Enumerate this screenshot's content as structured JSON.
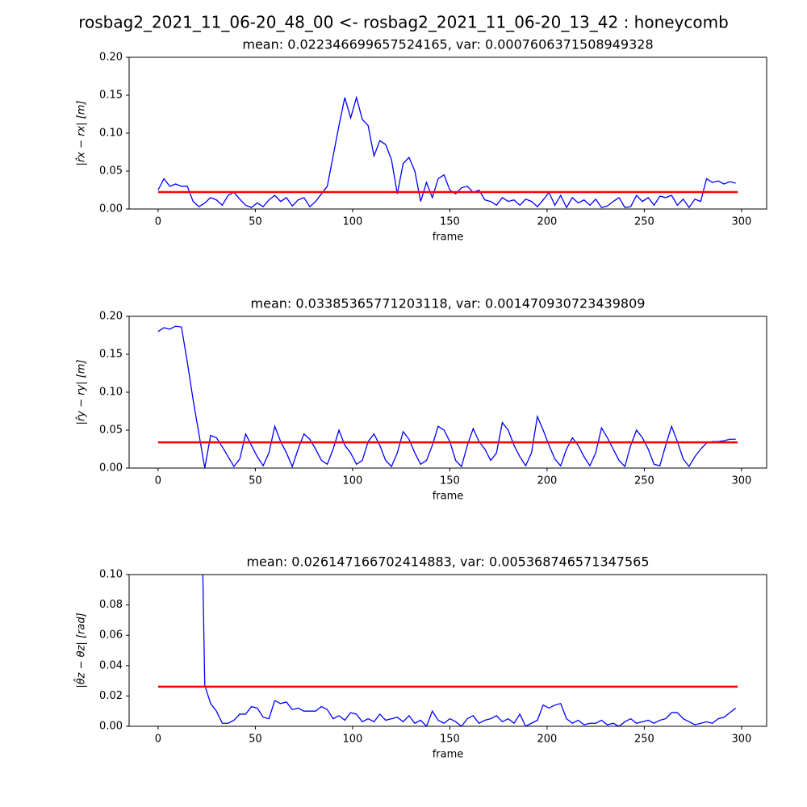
{
  "suptitle": "rosbag2_2021_11_06-20_48_00 <- rosbag2_2021_11_06-20_13_42 : honeycomb",
  "chart_data": [
    {
      "type": "line",
      "title": "mean: 0.022346699657524165, var: 0.0007606371508949328",
      "xlabel": "frame",
      "ylabel": "|r̂x − rx| [m]",
      "xlim": [
        -14.9,
        312.9
      ],
      "xticks": [
        0,
        50,
        100,
        150,
        200,
        250,
        300
      ],
      "ylim": [
        0,
        0.2
      ],
      "yticks": [
        {
          "value": 0,
          "label": "0.00"
        },
        {
          "value": 0.05,
          "label": "0.05"
        },
        {
          "value": 0.1,
          "label": "0.10"
        },
        {
          "value": 0.15,
          "label": "0.15"
        },
        {
          "value": 0.2,
          "label": "0.20"
        }
      ],
      "color": "#0000ff",
      "x": [
        0,
        3,
        6,
        9,
        12,
        15,
        18,
        21,
        24,
        27,
        30,
        33,
        36,
        39,
        42,
        45,
        48,
        51,
        54,
        57,
        60,
        63,
        66,
        69,
        72,
        75,
        78,
        81,
        84,
        87,
        90,
        93,
        96,
        99,
        102,
        105,
        108,
        111,
        114,
        117,
        120,
        123,
        126,
        129,
        132,
        135,
        138,
        141,
        144,
        147,
        150,
        153,
        156,
        159,
        162,
        165,
        168,
        171,
        174,
        177,
        180,
        183,
        186,
        189,
        192,
        195,
        198,
        201,
        204,
        207,
        210,
        213,
        216,
        219,
        222,
        225,
        228,
        231,
        234,
        237,
        240,
        243,
        246,
        249,
        252,
        255,
        258,
        261,
        264,
        267,
        270,
        273,
        276,
        279,
        282,
        285,
        288,
        291,
        294,
        297
      ],
      "values": [
        0.025,
        0.04,
        0.03,
        0.033,
        0.03,
        0.03,
        0.01,
        0.003,
        0.008,
        0.015,
        0.012,
        0.005,
        0.018,
        0.022,
        0.013,
        0.005,
        0.002,
        0.008,
        0.003,
        0.012,
        0.018,
        0.01,
        0.015,
        0.004,
        0.012,
        0.015,
        0.003,
        0.01,
        0.02,
        0.03,
        0.07,
        0.11,
        0.147,
        0.12,
        0.147,
        0.118,
        0.11,
        0.07,
        0.09,
        0.085,
        0.065,
        0.02,
        0.06,
        0.068,
        0.05,
        0.01,
        0.035,
        0.015,
        0.04,
        0.045,
        0.025,
        0.02,
        0.028,
        0.03,
        0.022,
        0.025,
        0.012,
        0.01,
        0.005,
        0.015,
        0.01,
        0.012,
        0.005,
        0.013,
        0.01,
        0.003,
        0.012,
        0.022,
        0.005,
        0.018,
        0.002,
        0.015,
        0.008,
        0.012,
        0.005,
        0.013,
        0.002,
        0.004,
        0.01,
        0.015,
        0.002,
        0.003,
        0.018,
        0.01,
        0.015,
        0.005,
        0.017,
        0.015,
        0.018,
        0.005,
        0.013,
        0.002,
        0.013,
        0.01,
        0.04,
        0.035,
        0.037,
        0.033,
        0.036,
        0.034
      ],
      "mean_line": {
        "y": 0.022346699657524165,
        "x": [
          0,
          298
        ],
        "color": "#ff0000"
      }
    },
    {
      "type": "line",
      "title": "mean: 0.03385365771203118, var: 0.001470930723439809",
      "xlabel": "frame",
      "ylabel": "|r̂y − ry| [m]",
      "xlim": [
        -14.9,
        312.9
      ],
      "xticks": [
        0,
        50,
        100,
        150,
        200,
        250,
        300
      ],
      "ylim": [
        0,
        0.2
      ],
      "yticks": [
        {
          "value": 0,
          "label": "0.00"
        },
        {
          "value": 0.05,
          "label": "0.05"
        },
        {
          "value": 0.1,
          "label": "0.10"
        },
        {
          "value": 0.15,
          "label": "0.15"
        },
        {
          "value": 0.2,
          "label": "0.20"
        }
      ],
      "color": "#0000ff",
      "x": [
        0,
        3,
        6,
        9,
        12,
        15,
        18,
        21,
        24,
        27,
        30,
        33,
        36,
        39,
        42,
        45,
        48,
        51,
        54,
        57,
        60,
        63,
        66,
        69,
        72,
        75,
        78,
        81,
        84,
        87,
        90,
        93,
        96,
        99,
        102,
        105,
        108,
        111,
        114,
        117,
        120,
        123,
        126,
        129,
        132,
        135,
        138,
        141,
        144,
        147,
        150,
        153,
        156,
        159,
        162,
        165,
        168,
        171,
        174,
        177,
        180,
        183,
        186,
        189,
        192,
        195,
        198,
        201,
        204,
        207,
        210,
        213,
        216,
        219,
        222,
        225,
        228,
        231,
        234,
        237,
        240,
        243,
        246,
        249,
        252,
        255,
        258,
        261,
        264,
        267,
        270,
        273,
        276,
        279,
        282,
        285,
        288,
        291,
        294,
        297
      ],
      "values": [
        0.18,
        0.185,
        0.183,
        0.187,
        0.186,
        0.14,
        0.09,
        0.045,
        0.0,
        0.043,
        0.04,
        0.028,
        0.015,
        0.002,
        0.012,
        0.045,
        0.03,
        0.015,
        0.003,
        0.02,
        0.055,
        0.035,
        0.02,
        0.002,
        0.025,
        0.045,
        0.038,
        0.025,
        0.01,
        0.005,
        0.025,
        0.05,
        0.03,
        0.02,
        0.005,
        0.01,
        0.035,
        0.045,
        0.03,
        0.01,
        0.002,
        0.02,
        0.048,
        0.038,
        0.02,
        0.005,
        0.01,
        0.03,
        0.055,
        0.05,
        0.035,
        0.01,
        0.002,
        0.03,
        0.052,
        0.035,
        0.025,
        0.01,
        0.02,
        0.06,
        0.05,
        0.03,
        0.015,
        0.003,
        0.02,
        0.068,
        0.05,
        0.03,
        0.012,
        0.003,
        0.025,
        0.04,
        0.03,
        0.015,
        0.003,
        0.02,
        0.053,
        0.04,
        0.025,
        0.01,
        0.002,
        0.03,
        0.05,
        0.04,
        0.025,
        0.005,
        0.003,
        0.03,
        0.055,
        0.035,
        0.012,
        0.002,
        0.015,
        0.025,
        0.033,
        0.035,
        0.035,
        0.036,
        0.038,
        0.038
      ],
      "mean_line": {
        "y": 0.03385365771203118,
        "x": [
          0,
          298
        ],
        "color": "#ff0000"
      }
    },
    {
      "type": "line",
      "title": "mean: 0.026147166702414883, var: 0.005368746571347565",
      "xlabel": "frame",
      "ylabel": "|θ̂z − θz| [rad]",
      "xlim": [
        -14.9,
        312.9
      ],
      "xticks": [
        0,
        50,
        100,
        150,
        200,
        250,
        300
      ],
      "ylim": [
        0,
        0.1
      ],
      "yticks": [
        {
          "value": 0,
          "label": "0.00"
        },
        {
          "value": 0.02,
          "label": "0.02"
        },
        {
          "value": 0.04,
          "label": "0.04"
        },
        {
          "value": 0.06,
          "label": "0.06"
        },
        {
          "value": 0.08,
          "label": "0.08"
        },
        {
          "value": 0.1,
          "label": "0.10"
        }
      ],
      "color": "#0000ff",
      "x": [
        23,
        24,
        27,
        30,
        33,
        36,
        39,
        42,
        45,
        48,
        51,
        54,
        57,
        60,
        63,
        66,
        69,
        72,
        75,
        78,
        81,
        84,
        87,
        90,
        93,
        96,
        99,
        102,
        105,
        108,
        111,
        114,
        117,
        120,
        123,
        126,
        129,
        132,
        135,
        138,
        141,
        144,
        147,
        150,
        153,
        156,
        159,
        162,
        165,
        168,
        171,
        174,
        177,
        180,
        183,
        186,
        189,
        192,
        195,
        198,
        201,
        204,
        207,
        210,
        213,
        216,
        219,
        222,
        225,
        228,
        231,
        234,
        237,
        240,
        243,
        246,
        249,
        252,
        255,
        258,
        261,
        264,
        267,
        270,
        273,
        276,
        279,
        282,
        285,
        288,
        291,
        294,
        297
      ],
      "values": [
        0.1,
        0.027,
        0.015,
        0.01,
        0.002,
        0.002,
        0.004,
        0.008,
        0.008,
        0.013,
        0.012,
        0.006,
        0.005,
        0.017,
        0.015,
        0.016,
        0.011,
        0.012,
        0.01,
        0.01,
        0.01,
        0.013,
        0.011,
        0.005,
        0.007,
        0.004,
        0.009,
        0.008,
        0.003,
        0.005,
        0.003,
        0.008,
        0.004,
        0.005,
        0.006,
        0.003,
        0.007,
        0.002,
        0.004,
        0.0,
        0.01,
        0.004,
        0.002,
        0.005,
        0.003,
        0.0,
        0.005,
        0.007,
        0.002,
        0.004,
        0.005,
        0.007,
        0.003,
        0.005,
        0.002,
        0.008,
        0.0,
        0.002,
        0.004,
        0.014,
        0.012,
        0.014,
        0.015,
        0.005,
        0.002,
        0.004,
        0.001,
        0.002,
        0.002,
        0.004,
        0.001,
        0.002,
        0.0,
        0.003,
        0.005,
        0.002,
        0.003,
        0.004,
        0.002,
        0.004,
        0.005,
        0.009,
        0.009,
        0.005,
        0.003,
        0.001,
        0.002,
        0.003,
        0.002,
        0.005,
        0.006,
        0.009,
        0.012
      ],
      "mean_line": {
        "y": 0.026147166702414883,
        "x": [
          0,
          298
        ],
        "color": "#ff0000"
      }
    }
  ]
}
